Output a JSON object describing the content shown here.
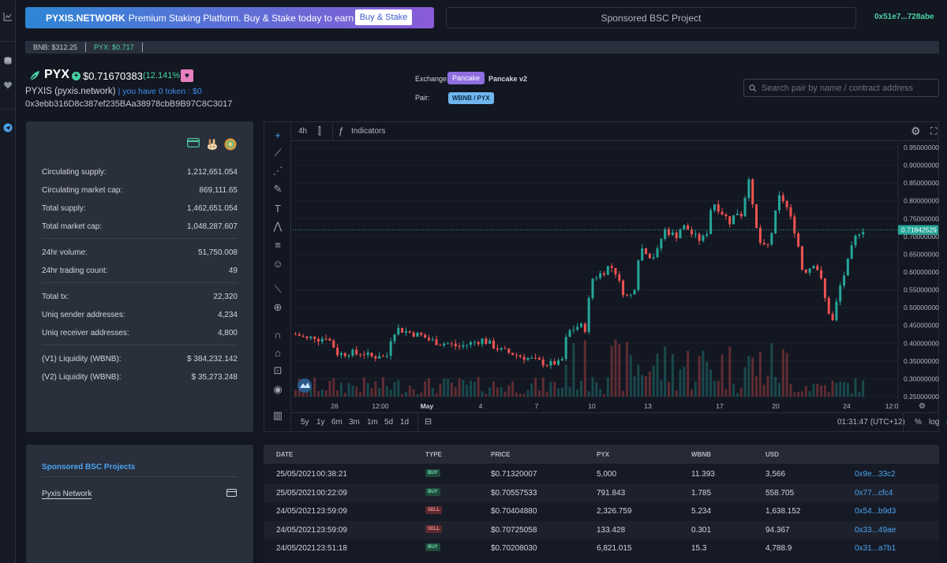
{
  "banner": {
    "brand": "PYXIS.NETWORK",
    "text": "Premium Staking Platform. Buy & Stake today to earn high APR.",
    "button": "Buy & Stake"
  },
  "sponsor_box": "Sponsored BSC Project",
  "wallet": "0x51e7...728abe",
  "price_strip": {
    "bnb": "BNB: $312.25",
    "pyx": "PYX: $0.717"
  },
  "token": {
    "symbol": "PYX",
    "price": "$0.71670383",
    "change": "(12.141%)",
    "full_name": "PYXIS (pyxis.network)",
    "holding": "| you have 0 token : $0",
    "address": "0x3ebb316D8c387ef235BAa38978cbB9B97C8C3017"
  },
  "exchange": {
    "label": "Exchange:",
    "active": "Pancake",
    "other": "Pancake v2"
  },
  "pair": {
    "label": "Pair:",
    "value": "WBNB / PYX"
  },
  "search": {
    "placeholder": "Search pair by name / contract address"
  },
  "stats": [
    {
      "label": "Circulating supply:",
      "value": "1,212,651.054"
    },
    {
      "label": "Circulating market cap:",
      "value": "869,111.65"
    },
    {
      "label": "Total supply:",
      "value": "1,462,651.054"
    },
    {
      "label": "Total market cap:",
      "value": "1,048,287.607"
    },
    {
      "label": "24hr volume:",
      "value": "51,750.008"
    },
    {
      "label": "24hr trading count:",
      "value": "49"
    },
    {
      "label": "Total tx:",
      "value": "22,320"
    },
    {
      "label": "Uniq sender addresses:",
      "value": "4,234"
    },
    {
      "label": "Uniq receiver addresses:",
      "value": "4,800"
    },
    {
      "label": "(V1) Liquidity (WBNB):",
      "value": "$ 384,232.142"
    },
    {
      "label": "(V2) Liquidity (WBNB):",
      "value": "$ 35,273.248"
    }
  ],
  "chart": {
    "interval": "4h",
    "indicators_label": "Indicators",
    "current_price_label": "0.71842529",
    "ranges": [
      "5y",
      "1y",
      "6m",
      "3m",
      "1m",
      "5d",
      "1d"
    ],
    "clock": "01:31:47 (UTC+12)",
    "scale_options": [
      "%",
      "log",
      "auto"
    ]
  },
  "chart_data": {
    "type": "candlestick",
    "y_ticks": [
      "0.95000000",
      "0.90000000",
      "0.85000000",
      "0.80000000",
      "0.75000000",
      "0.70000000",
      "0.65000000",
      "0.60000000",
      "0.55000000",
      "0.50000000",
      "0.45000000",
      "0.40000000",
      "0.35000000",
      "0.30000000",
      "0.25000000"
    ],
    "ylim": [
      0.25,
      0.95
    ],
    "x_ticks": [
      "26",
      "12:00",
      "May",
      "4",
      "7",
      "10",
      "13",
      "17",
      "20",
      "24",
      "12:0"
    ],
    "close_path": [
      0.425,
      0.42,
      0.41,
      0.42,
      0.41,
      0.42,
      0.4,
      0.37,
      0.37,
      0.375,
      0.37,
      0.375,
      0.365,
      0.36,
      0.37,
      0.355,
      0.43,
      0.44,
      0.435,
      0.43,
      0.425,
      0.42,
      0.41,
      0.405,
      0.4,
      0.4,
      0.395,
      0.39,
      0.395,
      0.4,
      0.405,
      0.41,
      0.4,
      0.39,
      0.38,
      0.375,
      0.37,
      0.365,
      0.36,
      0.355,
      0.35,
      0.345,
      0.34,
      0.345,
      0.34,
      0.43,
      0.44,
      0.45,
      0.44,
      0.58,
      0.59,
      0.6,
      0.62,
      0.6,
      0.55,
      0.53,
      0.54,
      0.67,
      0.66,
      0.64,
      0.66,
      0.72,
      0.71,
      0.7,
      0.73,
      0.72,
      0.7,
      0.69,
      0.7,
      0.8,
      0.78,
      0.76,
      0.74,
      0.77,
      0.76,
      0.88,
      0.74,
      0.68,
      0.66,
      0.72,
      0.81,
      0.8,
      0.75,
      0.7,
      0.6,
      0.61,
      0.63,
      0.58,
      0.5,
      0.46,
      0.55,
      0.6,
      0.66,
      0.71,
      0.72
    ]
  },
  "sponsored": {
    "title": "Sponsored BSC Projects",
    "item": "Pyxis Network"
  },
  "trades": {
    "headers": [
      "DATE",
      "TYPE",
      "PRICE",
      "PYX",
      "WBNB",
      "USD"
    ],
    "rows": [
      {
        "date": "25/05/2021",
        "time": "00:38:21",
        "type": "BUY",
        "price": "$0.71320007",
        "pyx": "5,000",
        "wbnb": "11.393",
        "usd": "3,566",
        "tx": "0x9e...33c2"
      },
      {
        "date": "25/05/2021",
        "time": "00:22:09",
        "type": "BUY",
        "price": "$0.70557533",
        "pyx": "791.843",
        "wbnb": "1.785",
        "usd": "558.705",
        "tx": "0x77...cfc4"
      },
      {
        "date": "24/05/2021",
        "time": "23:59:09",
        "type": "SELL",
        "price": "$0.70404880",
        "pyx": "2,326.759",
        "wbnb": "5.234",
        "usd": "1,638.152",
        "tx": "0x54...b9d3"
      },
      {
        "date": "24/05/2021",
        "time": "23:59:09",
        "type": "SELL",
        "price": "$0.70725058",
        "pyx": "133.428",
        "wbnb": "0.301",
        "usd": "94.367",
        "tx": "0x33...49ae"
      },
      {
        "date": "24/05/2021",
        "time": "23:51:18",
        "type": "BUY",
        "price": "$0.70208030",
        "pyx": "6,821.015",
        "wbnb": "15.3",
        "usd": "4,788.9",
        "tx": "0x31...a7b1"
      }
    ]
  },
  "colors": {
    "up": "#26a69a",
    "down": "#ef5350",
    "accent": "#4bd3a6",
    "link": "#4aa3f0"
  }
}
